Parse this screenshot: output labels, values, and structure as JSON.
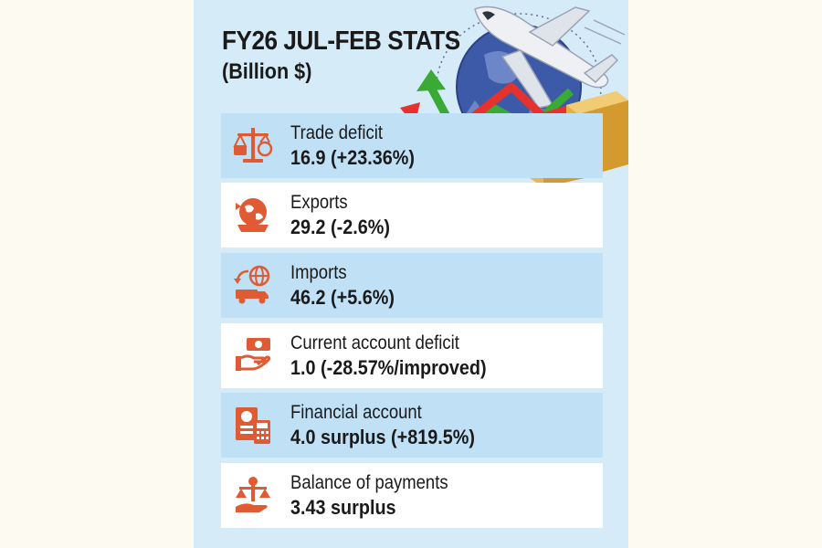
{
  "header": {
    "title": "FY26 JUL-FEB STATS",
    "subtitle": "(Billion $)"
  },
  "stats": [
    {
      "label": "Trade deficit",
      "value": "16.9 (+23.36%)",
      "icon": "scale-shopping-icon"
    },
    {
      "label": "Exports",
      "value": "29.2 (-2.6%)",
      "icon": "globe-ship-icon"
    },
    {
      "label": "Imports",
      "value": "46.2 (+5.6%)",
      "icon": "globe-truck-icon"
    },
    {
      "label": "Current account deficit",
      "value": "1.0 (-28.57%/improved)",
      "icon": "hand-cash-icon"
    },
    {
      "label": "Financial account",
      "value": "4.0 surplus (+819.5%)",
      "icon": "document-calculator-icon"
    },
    {
      "label": "Balance of payments",
      "value": "3.43 surplus",
      "icon": "hand-balance-icon"
    }
  ],
  "colors": {
    "panel": "#d6ebf8",
    "row_blue": "#bfe0f5",
    "row_white": "#ffffff",
    "icon": "#e05a33",
    "arrow_green": "#3aa935",
    "arrow_red": "#e5322d"
  }
}
